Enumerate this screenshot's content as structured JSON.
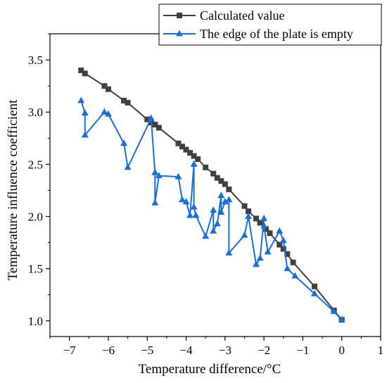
{
  "chart_data": {
    "type": "line",
    "xlabel": "Temperature difference/°C",
    "ylabel": "Temperature influence coefficient",
    "xlim": [
      -7.5,
      1
    ],
    "ylim": [
      0.85,
      3.75
    ],
    "x_ticks": [
      -7,
      -6,
      -5,
      -4,
      -3,
      -2,
      -1,
      0,
      1
    ],
    "y_ticks": [
      1.0,
      1.5,
      2.0,
      2.5,
      3.0,
      3.5
    ],
    "x_tick_labels": [
      "−7",
      "−6",
      "−5",
      "−4",
      "−3",
      "−2",
      "−1",
      "0",
      "1"
    ],
    "y_tick_labels": [
      "1.0",
      "1.5",
      "2.0",
      "2.5",
      "3.0",
      "3.5"
    ],
    "grid": false,
    "legend_position": "top-right",
    "series": [
      {
        "name": "Calculated value",
        "color": "#404040",
        "marker": "square",
        "points": [
          [
            -6.7,
            3.4
          ],
          [
            -6.6,
            3.37
          ],
          [
            -6.1,
            3.25
          ],
          [
            -6.0,
            3.22
          ],
          [
            -5.6,
            3.11
          ],
          [
            -5.5,
            3.09
          ],
          [
            -5.0,
            2.93
          ],
          [
            -4.9,
            2.9
          ],
          [
            -4.8,
            2.88
          ],
          [
            -4.7,
            2.85
          ],
          [
            -4.2,
            2.7
          ],
          [
            -4.1,
            2.67
          ],
          [
            -4.0,
            2.64
          ],
          [
            -3.9,
            2.61
          ],
          [
            -3.8,
            2.58
          ],
          [
            -3.7,
            2.55
          ],
          [
            -3.5,
            2.47
          ],
          [
            -3.3,
            2.41
          ],
          [
            -3.2,
            2.37
          ],
          [
            -3.1,
            2.34
          ],
          [
            -3.0,
            2.31
          ],
          [
            -2.9,
            2.26
          ],
          [
            -2.5,
            2.1
          ],
          [
            -2.4,
            2.05
          ],
          [
            -2.2,
            1.98
          ],
          [
            -2.1,
            1.94
          ],
          [
            -1.95,
            1.88
          ],
          [
            -1.85,
            1.84
          ],
          [
            -1.6,
            1.73
          ],
          [
            -1.5,
            1.69
          ],
          [
            -1.4,
            1.64
          ],
          [
            -1.25,
            1.56
          ],
          [
            -0.7,
            1.33
          ],
          [
            -0.2,
            1.1
          ],
          [
            0.0,
            1.01
          ]
        ]
      },
      {
        "name": "The edge of the plate is empty",
        "color": "#1a6fd6",
        "marker": "triangle",
        "points": [
          [
            -6.7,
            3.11
          ],
          [
            -6.6,
            2.99
          ],
          [
            -6.6,
            2.78
          ],
          [
            -6.1,
            3.0
          ],
          [
            -6.0,
            2.98
          ],
          [
            -5.6,
            2.7
          ],
          [
            -5.5,
            2.47
          ],
          [
            -4.9,
            2.94
          ],
          [
            -4.8,
            2.42
          ],
          [
            -4.8,
            2.13
          ],
          [
            -4.7,
            2.39
          ],
          [
            -4.2,
            2.38
          ],
          [
            -4.1,
            2.16
          ],
          [
            -4.0,
            2.14
          ],
          [
            -3.9,
            2.01
          ],
          [
            -3.8,
            2.5
          ],
          [
            -3.8,
            2.09
          ],
          [
            -3.75,
            2.01
          ],
          [
            -3.5,
            1.81
          ],
          [
            -3.3,
            2.06
          ],
          [
            -3.3,
            1.86
          ],
          [
            -3.2,
            1.93
          ],
          [
            -3.1,
            2.2
          ],
          [
            -3.1,
            2.04
          ],
          [
            -3.0,
            2.14
          ],
          [
            -2.9,
            2.16
          ],
          [
            -2.9,
            1.65
          ],
          [
            -2.5,
            1.82
          ],
          [
            -2.4,
            2.0
          ],
          [
            -2.2,
            1.54
          ],
          [
            -2.1,
            1.6
          ],
          [
            -2.0,
            1.98
          ],
          [
            -2.0,
            1.91
          ],
          [
            -1.9,
            1.66
          ],
          [
            -1.6,
            1.86
          ],
          [
            -1.5,
            1.77
          ],
          [
            -1.4,
            1.5
          ],
          [
            -1.2,
            1.43
          ],
          [
            -0.7,
            1.26
          ],
          [
            -0.2,
            1.09
          ],
          [
            0.0,
            1.01
          ]
        ]
      }
    ]
  }
}
